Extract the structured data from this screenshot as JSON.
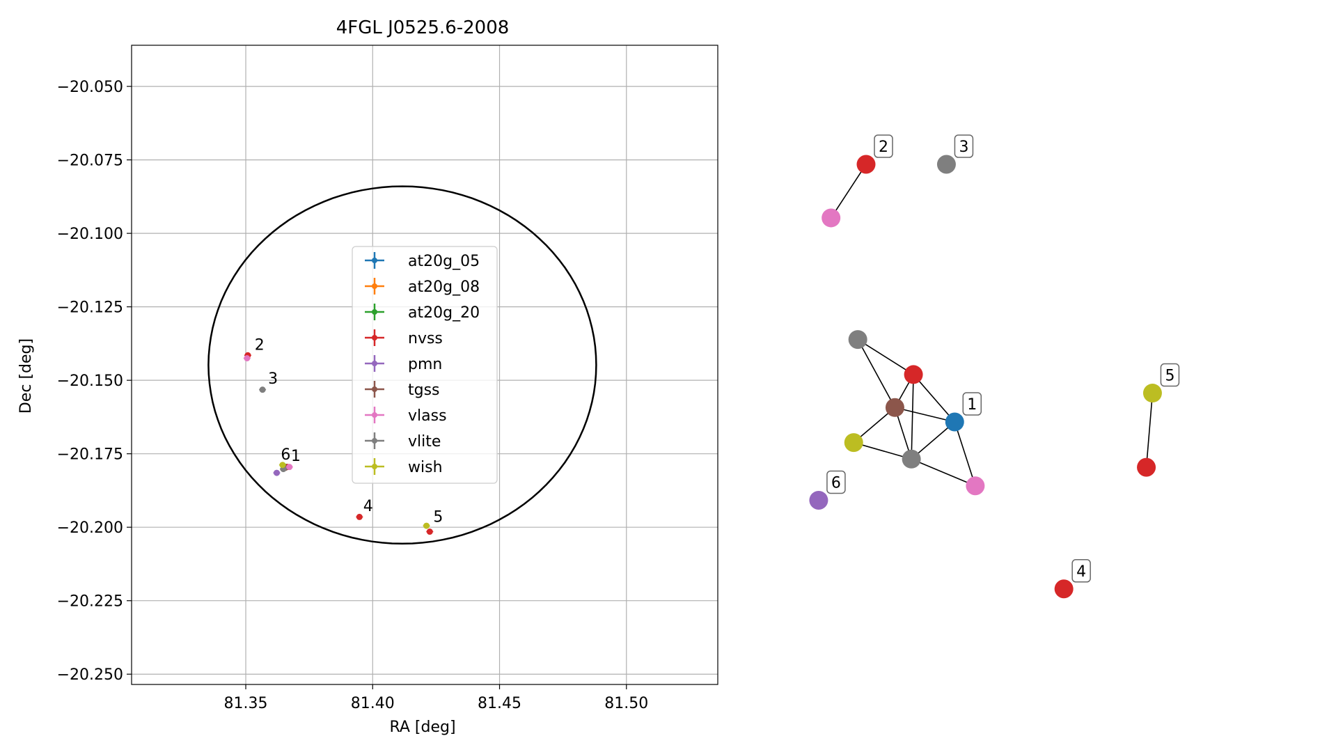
{
  "chart_data": [
    {
      "type": "scatter",
      "title": "4FGL J0525.6-2008",
      "xlabel": "RA [deg]",
      "ylabel": "Dec [deg]",
      "xlim": [
        81.305,
        81.536
      ],
      "ylim": [
        -20.2535,
        -20.036
      ],
      "xticks": [
        {
          "value": 81.35,
          "label": "81.35"
        },
        {
          "value": 81.4,
          "label": "81.40"
        },
        {
          "value": 81.45,
          "label": "81.45"
        },
        {
          "value": 81.5,
          "label": "81.50"
        }
      ],
      "yticks": [
        {
          "value": -20.05,
          "label": "−20.050"
        },
        {
          "value": -20.075,
          "label": "−20.075"
        },
        {
          "value": -20.1,
          "label": "−20.100"
        },
        {
          "value": -20.125,
          "label": "−20.125"
        },
        {
          "value": -20.15,
          "label": "−20.150"
        },
        {
          "value": -20.175,
          "label": "−20.175"
        },
        {
          "value": -20.2,
          "label": "−20.200"
        },
        {
          "value": -20.225,
          "label": "−20.225"
        },
        {
          "value": -20.25,
          "label": "−20.250"
        }
      ],
      "grid": true,
      "legend_position": "center",
      "series": [
        {
          "name": "at20g_05",
          "color": "#1f77b4",
          "points": [
            [
              81.366,
              -20.1795
            ]
          ]
        },
        {
          "name": "at20g_08",
          "color": "#ff7f0e",
          "points": [
            [
              81.366,
              -20.1795
            ]
          ]
        },
        {
          "name": "at20g_20",
          "color": "#2ca02c",
          "points": [
            [
              81.366,
              -20.1795
            ]
          ]
        },
        {
          "name": "nvss",
          "color": "#d62728",
          "points": [
            [
              81.3508,
              -20.1415
            ],
            [
              81.3948,
              -20.1965
            ],
            [
              81.4225,
              -20.2015
            ],
            [
              81.3665,
              -20.1795
            ]
          ]
        },
        {
          "name": "pmn",
          "color": "#9467bd",
          "points": [
            [
              81.3622,
              -20.1815
            ]
          ]
        },
        {
          "name": "tgss",
          "color": "#8c564b",
          "points": [
            [
              81.3655,
              -20.1798
            ]
          ]
        },
        {
          "name": "vlass",
          "color": "#e377c2",
          "points": [
            [
              81.3505,
              -20.1425
            ],
            [
              81.3672,
              -20.1795
            ]
          ]
        },
        {
          "name": "vlite",
          "color": "#7f7f7f",
          "points": [
            [
              81.3566,
              -20.1532
            ],
            [
              81.3648,
              -20.1802
            ]
          ]
        },
        {
          "name": "wish",
          "color": "#bcbd22",
          "points": [
            [
              81.3645,
              -20.1788
            ],
            [
              81.4212,
              -20.1995
            ]
          ]
        }
      ],
      "ellipse": {
        "center": [
          81.4117,
          -20.1448
        ],
        "semi_axis_ra": 0.0764,
        "semi_axis_dec": 0.0608,
        "color": "#000000"
      },
      "annotations": [
        {
          "text": "1",
          "x": 81.3678,
          "y": -20.1775
        },
        {
          "text": "2",
          "x": 81.3535,
          "y": -20.1397
        },
        {
          "text": "3",
          "x": 81.3588,
          "y": -20.1512
        },
        {
          "text": "4",
          "x": 81.3963,
          "y": -20.1945
        },
        {
          "text": "5",
          "x": 81.4239,
          "y": -20.1982
        },
        {
          "text": "6",
          "x": 81.3638,
          "y": -20.177
        }
      ]
    },
    {
      "type": "network",
      "nodes": [
        {
          "id": "n1",
          "color": "#d62728",
          "x": 0.0,
          "y": 0.0
        },
        {
          "id": "n2",
          "color": "#e377c2",
          "x": -0.17,
          "y": -0.26
        },
        {
          "id": "n3",
          "color": "#7f7f7f",
          "x": 0.39,
          "y": 0.0
        },
        {
          "id": "n4",
          "color": "#7f7f7f",
          "x": -0.04,
          "y": -0.85
        },
        {
          "id": "n5",
          "color": "#d62728",
          "x": 0.23,
          "y": -1.02
        },
        {
          "id": "n6",
          "color": "#8c564b",
          "x": 0.14,
          "y": -1.18
        },
        {
          "id": "n7",
          "color": "#1f77b4",
          "x": 0.43,
          "y": -1.25
        },
        {
          "id": "n8",
          "color": "#bcbd22",
          "x": -0.06,
          "y": -1.35
        },
        {
          "id": "n9",
          "color": "#7f7f7f",
          "x": 0.22,
          "y": -1.43
        },
        {
          "id": "n10",
          "color": "#e377c2",
          "x": 0.53,
          "y": -1.56
        },
        {
          "id": "n11",
          "color": "#9467bd",
          "x": -0.23,
          "y": -1.63
        },
        {
          "id": "n12",
          "color": "#bcbd22",
          "x": 1.39,
          "y": -1.11
        },
        {
          "id": "n13",
          "color": "#d62728",
          "x": 1.36,
          "y": -1.47
        },
        {
          "id": "n14",
          "color": "#d62728",
          "x": 0.96,
          "y": -2.06
        }
      ],
      "edges": [
        [
          "n1",
          "n2"
        ],
        [
          "n4",
          "n5"
        ],
        [
          "n4",
          "n6"
        ],
        [
          "n5",
          "n6"
        ],
        [
          "n5",
          "n7"
        ],
        [
          "n5",
          "n9"
        ],
        [
          "n6",
          "n7"
        ],
        [
          "n6",
          "n8"
        ],
        [
          "n6",
          "n9"
        ],
        [
          "n7",
          "n9"
        ],
        [
          "n7",
          "n10"
        ],
        [
          "n8",
          "n9"
        ],
        [
          "n9",
          "n10"
        ],
        [
          "n12",
          "n13"
        ]
      ],
      "labels": [
        {
          "text": "1",
          "node": "n7"
        },
        {
          "text": "2",
          "node": "n1"
        },
        {
          "text": "3",
          "node": "n3"
        },
        {
          "text": "4",
          "node": "n14"
        },
        {
          "text": "5",
          "node": "n12"
        },
        {
          "text": "6",
          "node": "n11"
        }
      ]
    }
  ]
}
